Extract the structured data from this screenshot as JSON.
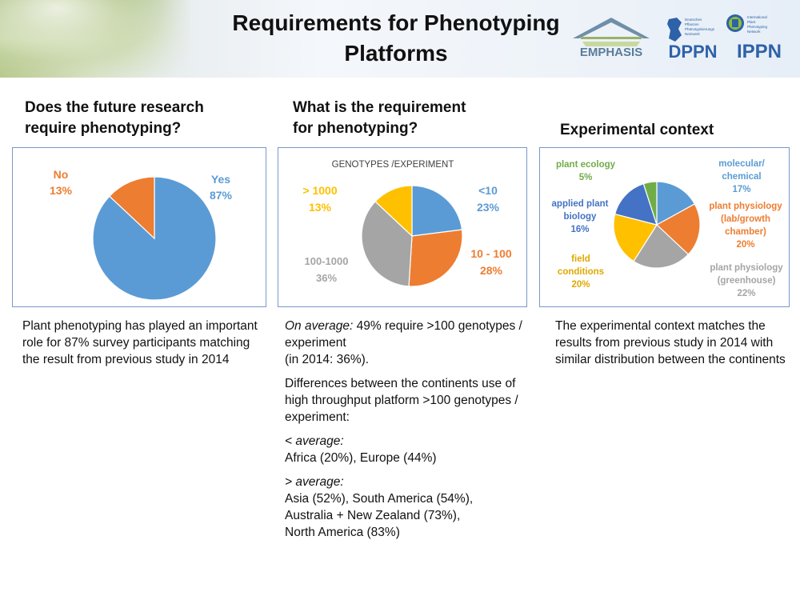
{
  "header": {
    "title_line1": "Requirements for Phenotyping",
    "title_line2": "Platforms",
    "logos": {
      "emphasis": "EMPHASIS",
      "dppn": "DPPN",
      "dppn_small": "Deutsches Pflanzen Phänotypisierungs Netzwerk",
      "ippn": "IPPN",
      "ippn_small": "International Plant Phenotyping Network"
    }
  },
  "sections": [
    {
      "heading_line1": "Does the future research",
      "heading_line2": "require phenotyping?",
      "paragraphs": [
        "Plant phenotyping has played an important role for 87% survey participants matching the result from previous study in 2014"
      ]
    },
    {
      "heading_line1": "What is the requirement",
      "heading_line2": "for phenotyping?",
      "avg_label": "On average:",
      "avg_text": " 49% require >100 genotypes / experiment",
      "avg_text2": "(in 2014: 36%).",
      "diff_text": "Differences between the continents use of high throughput platform >100 genotypes / experiment:",
      "below_label": "< average:",
      "below_text": "Africa (20%), Europe (44%)",
      "above_label": "> average:",
      "above_line1": "Asia (52%), South America (54%),",
      "above_line2": "Australia + New Zealand (73%),",
      "above_line3": "North America (83%)"
    },
    {
      "heading_line1": "Experimental context",
      "paragraphs": [
        "The experimental context matches the results from previous study in 2014 with similar distribution between the continents"
      ]
    }
  ],
  "chart_data": [
    {
      "type": "pie",
      "title": "",
      "slices": [
        {
          "label": "Yes",
          "value": 87,
          "value_label": "87%",
          "color": "#5b9bd5"
        },
        {
          "label": "No",
          "value": 13,
          "value_label": "13%",
          "color": "#ed7d31"
        }
      ]
    },
    {
      "type": "pie",
      "title": "GENOTYPES /EXPERIMENT",
      "slices": [
        {
          "label": "<10",
          "value": 23,
          "value_label": "23%",
          "color": "#5b9bd5"
        },
        {
          "label": "10 - 100",
          "value": 28,
          "value_label": "28%",
          "color": "#ed7d31"
        },
        {
          "label": "100-1000",
          "value": 36,
          "value_label": "36%",
          "color": "#a5a5a5"
        },
        {
          "label": "> 1000",
          "value": 13,
          "value_label": "13%",
          "color": "#ffc000"
        }
      ]
    },
    {
      "type": "pie",
      "title": "",
      "slices": [
        {
          "label": "molecular/ chemical",
          "value": 17,
          "value_label": "17%",
          "color": "#5b9bd5"
        },
        {
          "label": "plant physiology (lab/growth chamber)",
          "value": 20,
          "value_label": "20%",
          "color": "#ed7d31"
        },
        {
          "label": "plant physiology (greenhouse)",
          "value": 22,
          "value_label": "22%",
          "color": "#a5a5a5"
        },
        {
          "label": "field conditions",
          "value": 20,
          "value_label": "20%",
          "color": "#ffc000"
        },
        {
          "label": "applied plant biology",
          "value": 16,
          "value_label": "16%",
          "color": "#4472c4"
        },
        {
          "label": "plant ecology",
          "value": 5,
          "value_label": "5%",
          "color": "#70ad47"
        }
      ]
    }
  ]
}
